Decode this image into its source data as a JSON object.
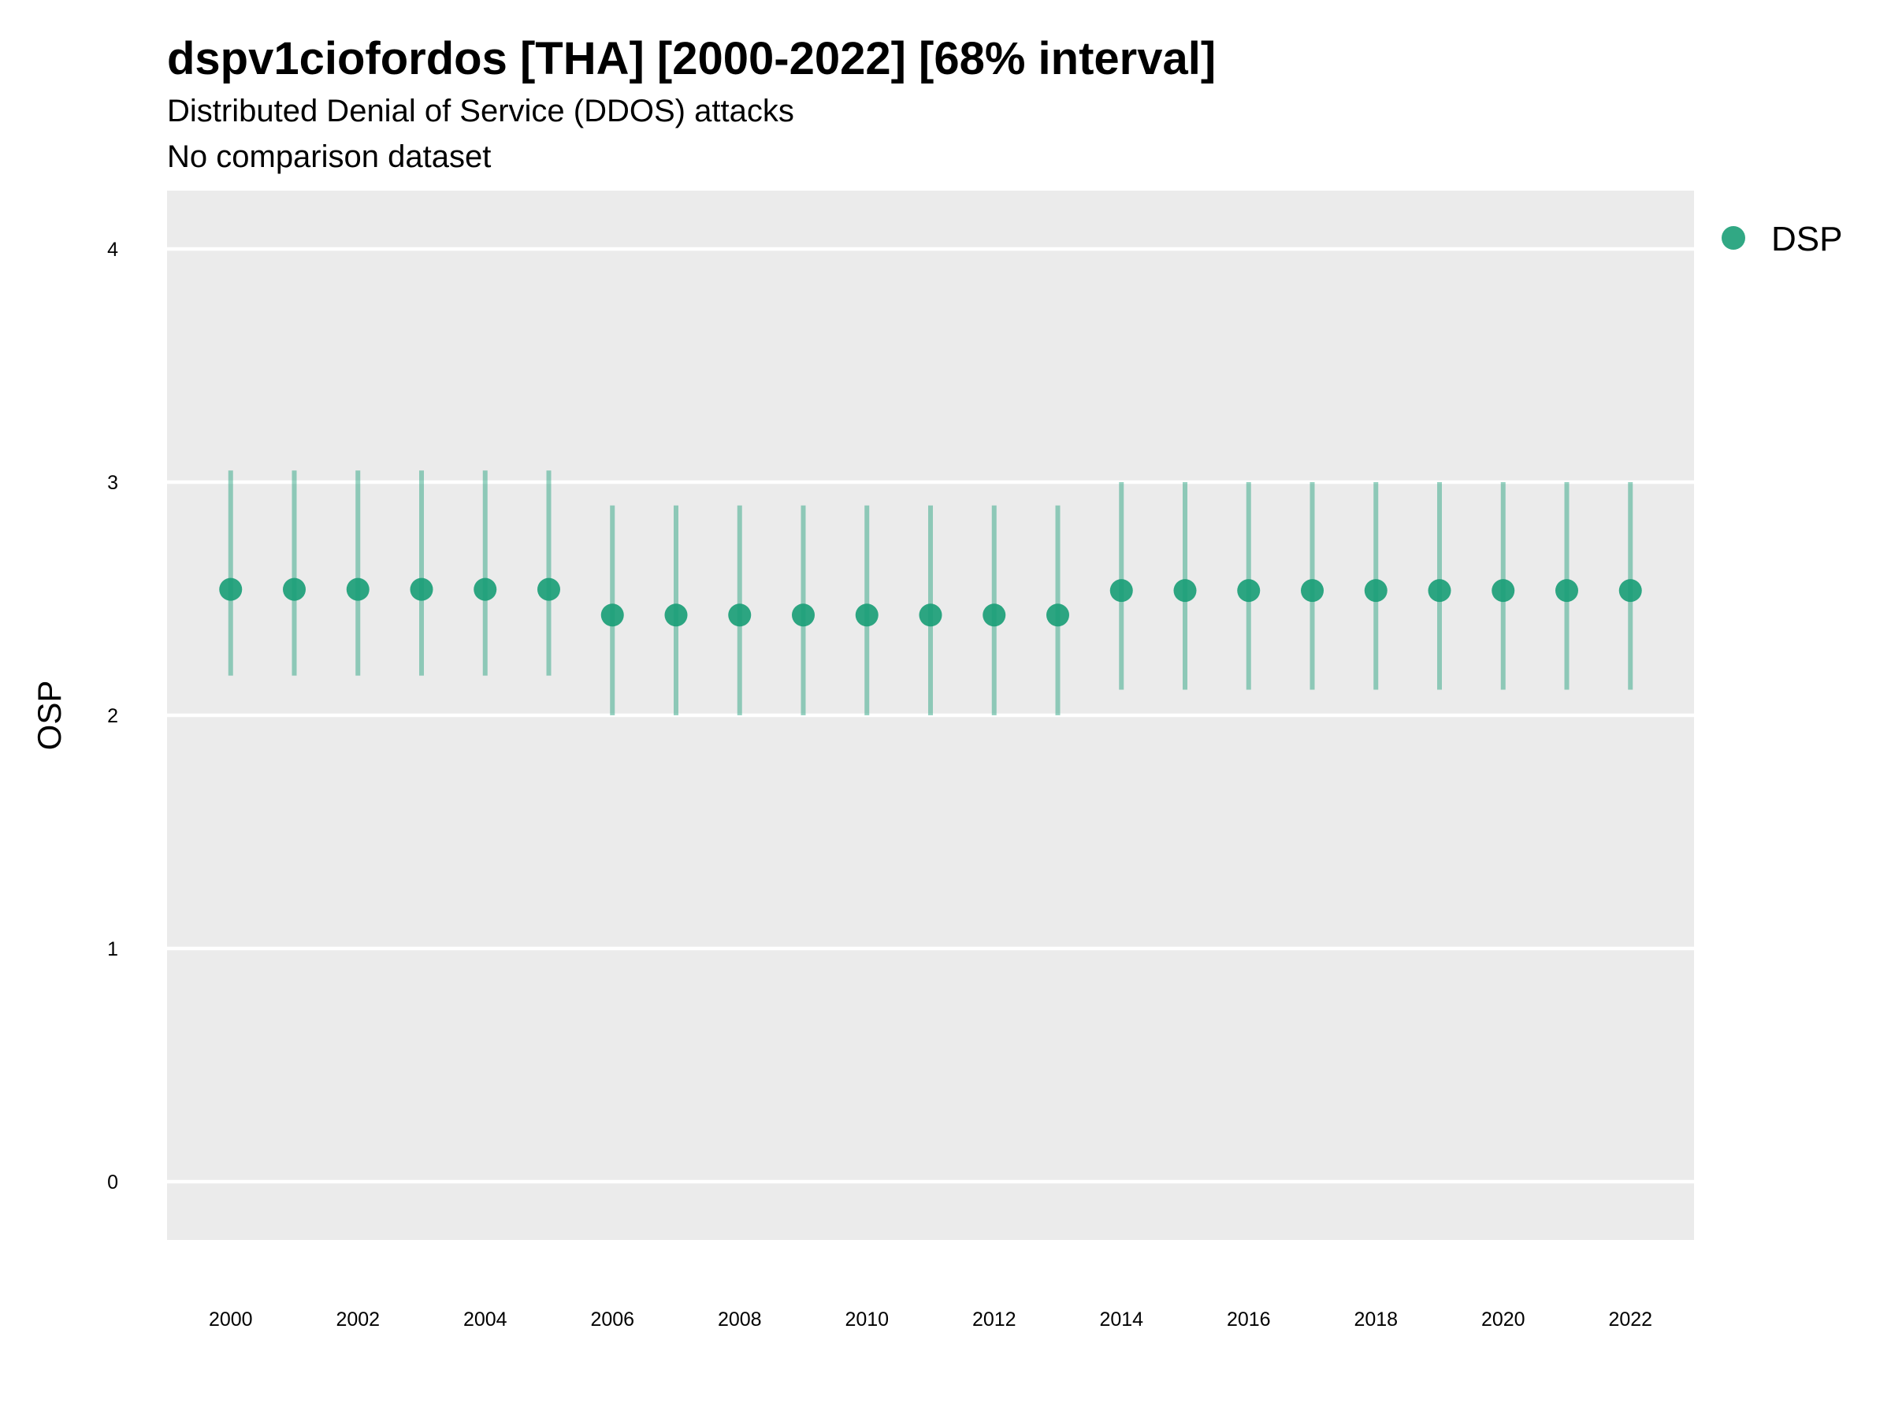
{
  "chart_data": {
    "type": "scatter",
    "title": "dspv1ciofordos [THA] [2000-2022] [68% interval]",
    "subtitle": "Distributed Denial of Service (DDOS) attacks",
    "caption_line": "No comparison dataset",
    "ylabel": "OSP",
    "xlabel": "",
    "x_ticks": [
      2000,
      2002,
      2004,
      2006,
      2008,
      2010,
      2012,
      2014,
      2016,
      2018,
      2020,
      2022
    ],
    "y_ticks": [
      0,
      1,
      2,
      3,
      4
    ],
    "xlim": [
      1999,
      2023
    ],
    "ylim": [
      -0.25,
      4.25
    ],
    "grid": true,
    "legend_position": "top-right",
    "point_color": "#1b9e77",
    "series": [
      {
        "name": "DSP",
        "x": [
          2000,
          2001,
          2002,
          2003,
          2004,
          2005,
          2006,
          2007,
          2008,
          2009,
          2010,
          2011,
          2012,
          2013,
          2014,
          2015,
          2016,
          2017,
          2018,
          2019,
          2020,
          2021,
          2022
        ],
        "y": [
          2.54,
          2.54,
          2.54,
          2.54,
          2.54,
          2.54,
          2.43,
          2.43,
          2.43,
          2.43,
          2.43,
          2.43,
          2.43,
          2.43,
          2.535,
          2.535,
          2.535,
          2.535,
          2.535,
          2.535,
          2.535,
          2.535,
          2.535
        ],
        "lower": [
          2.17,
          2.17,
          2.17,
          2.17,
          2.17,
          2.17,
          2.0,
          2.0,
          2.0,
          2.0,
          2.0,
          2.0,
          2.0,
          2.0,
          2.11,
          2.11,
          2.11,
          2.11,
          2.11,
          2.11,
          2.11,
          2.11,
          2.11
        ],
        "upper": [
          3.05,
          3.05,
          3.05,
          3.05,
          3.05,
          3.05,
          2.9,
          2.9,
          2.9,
          2.9,
          2.9,
          2.9,
          2.9,
          2.9,
          3.0,
          3.0,
          3.0,
          3.0,
          3.0,
          3.0,
          3.0,
          3.0,
          3.0
        ]
      }
    ]
  }
}
